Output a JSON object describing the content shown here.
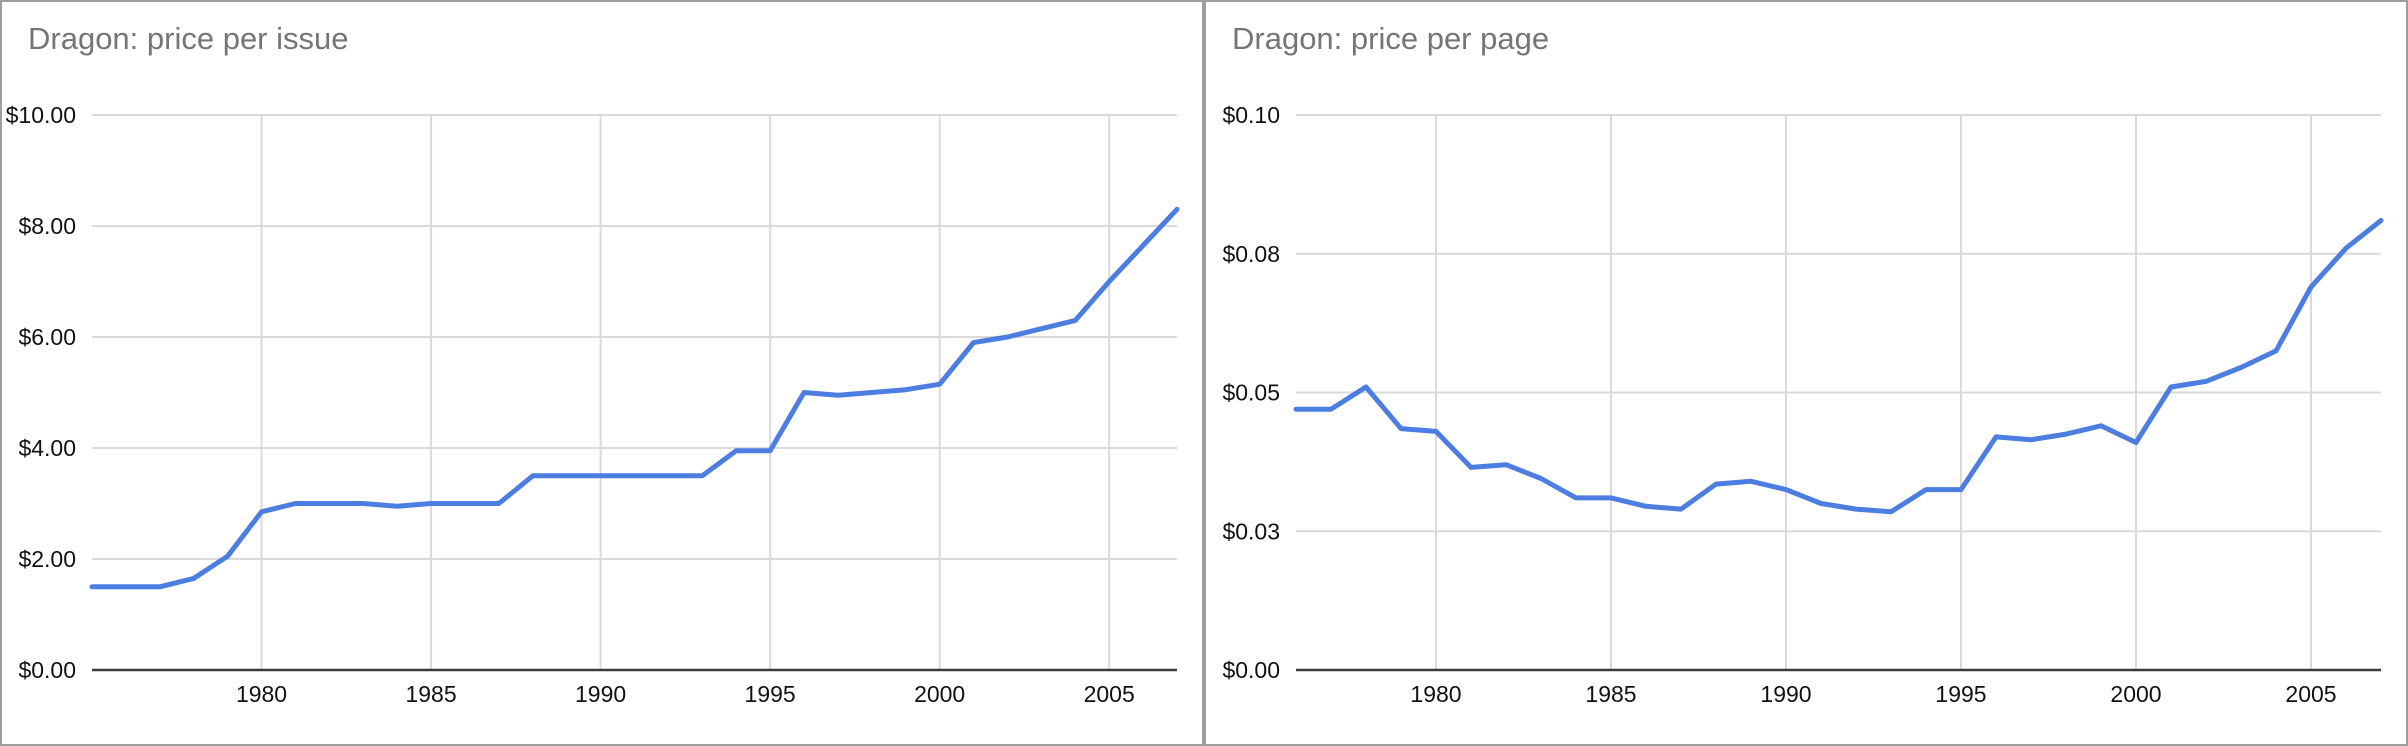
{
  "page": {
    "background": "#ffffff",
    "panel_border_color": "#9e9e9e"
  },
  "chart_data": [
    {
      "type": "line",
      "title": "Dragon: price per issue",
      "title_color": "#757575",
      "line_color": "#4c7de0",
      "grid_color": "#dadada",
      "axis_color": "#3c3c3c",
      "tick_color": "#111111",
      "grid": true,
      "legend": "none",
      "xlabel": "",
      "ylabel": "",
      "ylim": [
        0,
        10
      ],
      "x": [
        1975,
        1976,
        1977,
        1978,
        1979,
        1980,
        1981,
        1982,
        1983,
        1984,
        1985,
        1986,
        1987,
        1988,
        1989,
        1990,
        1991,
        1992,
        1993,
        1994,
        1995,
        1996,
        1997,
        1998,
        1999,
        2000,
        2001,
        2002,
        2003,
        2004,
        2005,
        2006,
        2007
      ],
      "values": [
        1.5,
        1.5,
        1.5,
        1.65,
        2.05,
        2.85,
        3.0,
        3.0,
        3.0,
        2.95,
        3.0,
        3.0,
        3.0,
        3.5,
        3.5,
        3.5,
        3.5,
        3.5,
        3.5,
        3.95,
        3.95,
        5.0,
        4.95,
        5.0,
        5.05,
        5.15,
        5.9,
        6.0,
        6.15,
        6.3,
        7.0,
        7.65,
        8.3
      ],
      "xticks": [
        1980,
        1985,
        1990,
        1995,
        2000,
        2005
      ],
      "yticks": [
        {
          "v": 0,
          "label": "$0.00"
        },
        {
          "v": 2,
          "label": "$2.00"
        },
        {
          "v": 4,
          "label": "$4.00"
        },
        {
          "v": 6,
          "label": "$6.00"
        },
        {
          "v": 8,
          "label": "$8.00"
        },
        {
          "v": 10,
          "label": "$10.00"
        }
      ]
    },
    {
      "type": "line",
      "title": "Dragon: price per page",
      "title_color": "#757575",
      "line_color": "#4c7de0",
      "grid_color": "#dadada",
      "axis_color": "#3c3c3c",
      "tick_color": "#111111",
      "grid": true,
      "legend": "none",
      "xlabel": "",
      "ylabel": "",
      "ylim": [
        0,
        0.1
      ],
      "x": [
        1976,
        1977,
        1978,
        1979,
        1980,
        1981,
        1982,
        1983,
        1984,
        1985,
        1986,
        1987,
        1988,
        1989,
        1990,
        1991,
        1992,
        1993,
        1994,
        1995,
        1996,
        1997,
        1998,
        1999,
        2000,
        2001,
        2002,
        2003,
        2004,
        2005,
        2006,
        2007
      ],
      "values": [
        0.047,
        0.047,
        0.051,
        0.0435,
        0.043,
        0.0365,
        0.037,
        0.0345,
        0.031,
        0.031,
        0.0295,
        0.029,
        0.0335,
        0.034,
        0.0325,
        0.03,
        0.029,
        0.0285,
        0.0325,
        0.0325,
        0.042,
        0.0415,
        0.0425,
        0.044,
        0.041,
        0.051,
        0.052,
        0.0545,
        0.0575,
        0.069,
        0.076,
        0.081
      ],
      "xticks": [
        1980,
        1985,
        1990,
        1995,
        2000,
        2005
      ],
      "yticks": [
        {
          "v": 0,
          "label": "$0.00"
        },
        {
          "v": 0.025,
          "label": "$0.03"
        },
        {
          "v": 0.05,
          "label": "$0.05"
        },
        {
          "v": 0.075,
          "label": "$0.08"
        },
        {
          "v": 0.1,
          "label": "$0.10"
        }
      ]
    }
  ]
}
